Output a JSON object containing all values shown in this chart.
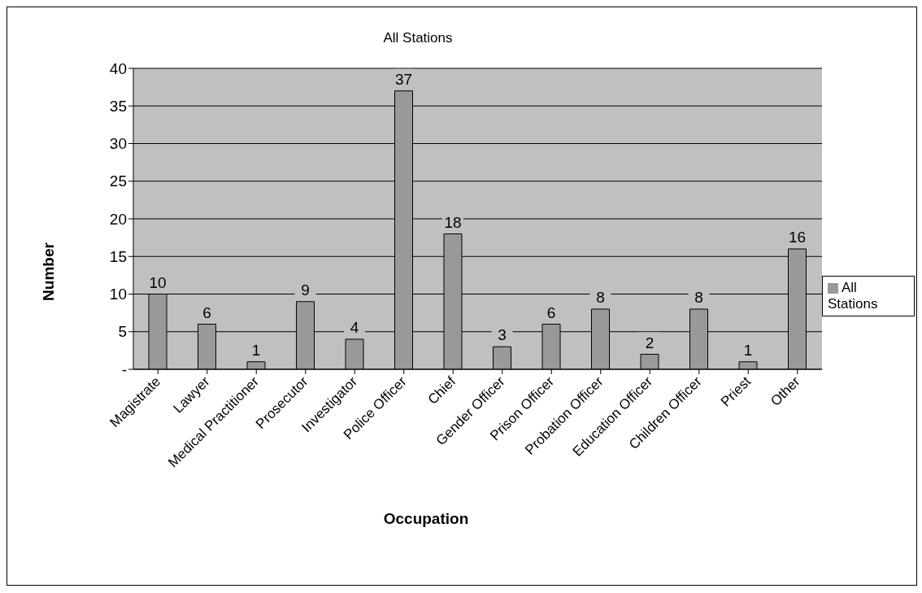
{
  "chart_data": {
    "type": "bar",
    "title": "All Stations",
    "xlabel": "Occupation",
    "ylabel": "Number",
    "categories": [
      "Magistrate",
      "Lawyer",
      "Medical Practitioner",
      "Prosecutor",
      "Investigator",
      "Police Officer",
      "Chief",
      "Gender Officer",
      "Prison Officer",
      "Probation Officer",
      "Education Officer",
      "Children Officer",
      "Priest",
      "Other"
    ],
    "series": [
      {
        "name": "All Stations",
        "color": "#999999",
        "values": [
          10,
          6,
          1,
          9,
          4,
          37,
          18,
          3,
          6,
          8,
          2,
          8,
          1,
          16
        ]
      }
    ],
    "ylim": [
      0,
      40
    ],
    "yticks": [
      {
        "value": 0,
        "label": "-"
      },
      5,
      10,
      15,
      20,
      25,
      30,
      35,
      40
    ],
    "grid": "y",
    "legend": "right",
    "data_labels": true
  }
}
